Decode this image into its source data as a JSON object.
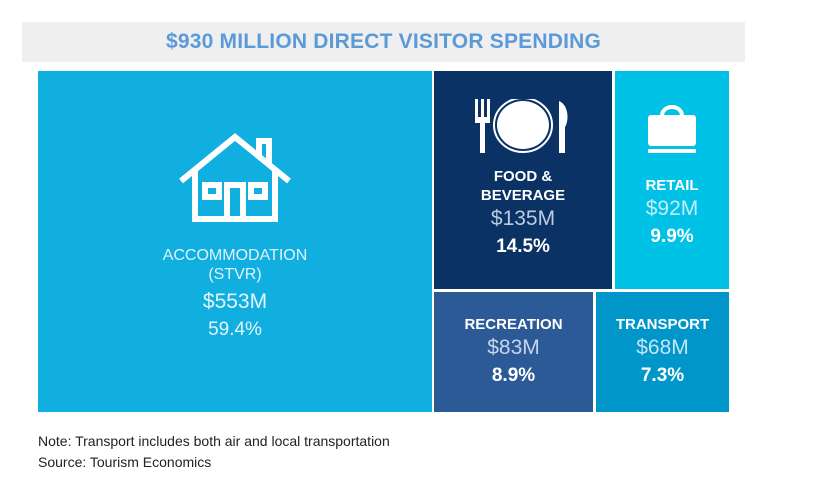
{
  "title": "$930 MILLION DIRECT VISITOR SPENDING",
  "chart_data": {
    "type": "treemap",
    "title": "$930 MILLION DIRECT VISITOR SPENDING",
    "total_label": "$930 Million",
    "categories": [
      "ACCOMMODATION (STVR)",
      "FOOD & BEVERAGE",
      "RETAIL",
      "RECREATION",
      "TRANSPORT"
    ],
    "values_musd": [
      553,
      135,
      92,
      83,
      68
    ],
    "shares_pct": [
      59.4,
      14.5,
      9.9,
      8.9,
      7.3
    ],
    "tiles": [
      {
        "label1": "ACCOMMODATION",
        "label2": "(STVR)",
        "amount": "$553M",
        "pct": "59.4%",
        "icon": "house-icon",
        "color": "#11afe0"
      },
      {
        "label1": "FOOD &",
        "label2": "BEVERAGE",
        "amount": "$135M",
        "pct": "14.5%",
        "icon": "fork-plate-knife-icon",
        "color": "#0b3265"
      },
      {
        "label1": "RETAIL",
        "amount": "$92M",
        "pct": "9.9%",
        "icon": "shopping-bag-icon",
        "color": "#00c2e7"
      },
      {
        "label1": "RECREATION",
        "amount": "$83M",
        "pct": "8.9%",
        "color": "#2b5a96"
      },
      {
        "label1": "TRANSPORT",
        "amount": "$68M",
        "pct": "7.3%",
        "color": "#0096c9"
      }
    ]
  },
  "notes": {
    "note": "Note: Transport includes both air and local transportation",
    "source": "Source: Tourism Economics"
  }
}
